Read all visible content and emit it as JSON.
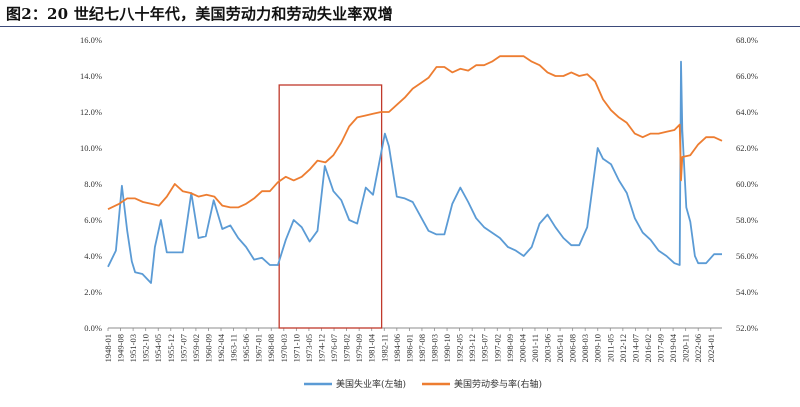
{
  "title": "图2：20 世纪七八十年代，美国劳动力和劳动失业率双增",
  "chart_data": {
    "type": "line",
    "grid": false,
    "legend_position": "bottom",
    "y_left": {
      "lim": [
        0,
        16
      ],
      "ticks": [
        0,
        2,
        4,
        6,
        8,
        10,
        12,
        14,
        16
      ],
      "tick_labels": [
        "0.0%",
        "2.0%",
        "4.0%",
        "6.0%",
        "8.0%",
        "10.0%",
        "12.0%",
        "14.0%",
        "16.0%"
      ]
    },
    "y_right": {
      "lim": [
        52,
        68
      ],
      "ticks": [
        52,
        54,
        56,
        58,
        60,
        62,
        64,
        66,
        68
      ],
      "tick_labels": [
        "52.0%",
        "54.0%",
        "56.0%",
        "58.0%",
        "60.0%",
        "62.0%",
        "64.0%",
        "66.0%",
        "68.0%"
      ]
    },
    "x_lim": [
      "1948-01",
      "2025-06"
    ],
    "x_tick_labels": [
      "1948-01",
      "1949-08",
      "1951-03",
      "1952-10",
      "1954-05",
      "1955-12",
      "1957-07",
      "1959-02",
      "1960-09",
      "1962-04",
      "1963-11",
      "1965-06",
      "1967-01",
      "1968-08",
      "1970-03",
      "1971-10",
      "1973-05",
      "1974-12",
      "1976-07",
      "1978-02",
      "1979-09",
      "1981-04",
      "1982-11",
      "1984-06",
      "1986-01",
      "1987-08",
      "1989-03",
      "1990-10",
      "1992-05",
      "1993-12",
      "1995-07",
      "1997-02",
      "1998-09",
      "2000-04",
      "2001-11",
      "2003-06",
      "2005-01",
      "2006-08",
      "2008-03",
      "2009-10",
      "2011-05",
      "2012-12",
      "2014-07",
      "2016-02",
      "2017-09",
      "2019-04",
      "2020-11",
      "2022-06",
      "2024-01"
    ],
    "highlight": {
      "x_start": "1969-08",
      "x_end": "1982-07",
      "y_left_range": [
        0,
        13.5
      ],
      "color": "#c0392b"
    },
    "series": [
      {
        "name": "美国失业率(左轴)",
        "axis": "left",
        "color": "#5b9bd5",
        "points": [
          [
            "1948-01",
            3.4
          ],
          [
            "1949-01",
            4.3
          ],
          [
            "1949-10",
            7.9
          ],
          [
            "1950-06",
            5.4
          ],
          [
            "1951-01",
            3.7
          ],
          [
            "1951-06",
            3.1
          ],
          [
            "1952-05",
            3.0
          ],
          [
            "1953-06",
            2.5
          ],
          [
            "1953-12",
            4.5
          ],
          [
            "1954-09",
            6.0
          ],
          [
            "1955-06",
            4.2
          ],
          [
            "1956-06",
            4.2
          ],
          [
            "1957-06",
            4.2
          ],
          [
            "1958-07",
            7.5
          ],
          [
            "1959-06",
            5.0
          ],
          [
            "1960-05",
            5.1
          ],
          [
            "1961-05",
            7.1
          ],
          [
            "1962-06",
            5.5
          ],
          [
            "1963-06",
            5.7
          ],
          [
            "1964-06",
            5.0
          ],
          [
            "1965-06",
            4.5
          ],
          [
            "1966-06",
            3.8
          ],
          [
            "1967-06",
            3.9
          ],
          [
            "1968-06",
            3.5
          ],
          [
            "1969-06",
            3.5
          ],
          [
            "1970-06",
            4.9
          ],
          [
            "1971-06",
            6.0
          ],
          [
            "1972-06",
            5.6
          ],
          [
            "1973-06",
            4.8
          ],
          [
            "1974-06",
            5.4
          ],
          [
            "1975-05",
            9.0
          ],
          [
            "1976-06",
            7.6
          ],
          [
            "1977-06",
            7.1
          ],
          [
            "1978-06",
            6.0
          ],
          [
            "1979-06",
            5.8
          ],
          [
            "1980-07",
            7.8
          ],
          [
            "1981-06",
            7.4
          ],
          [
            "1982-12",
            10.8
          ],
          [
            "1983-06",
            10.1
          ],
          [
            "1984-06",
            7.3
          ],
          [
            "1985-06",
            7.2
          ],
          [
            "1986-06",
            7.0
          ],
          [
            "1987-06",
            6.2
          ],
          [
            "1988-06",
            5.4
          ],
          [
            "1989-06",
            5.2
          ],
          [
            "1990-06",
            5.2
          ],
          [
            "1991-06",
            6.9
          ],
          [
            "1992-06",
            7.8
          ],
          [
            "1993-06",
            7.0
          ],
          [
            "1994-06",
            6.1
          ],
          [
            "1995-06",
            5.6
          ],
          [
            "1996-06",
            5.3
          ],
          [
            "1997-06",
            5.0
          ],
          [
            "1998-06",
            4.5
          ],
          [
            "1999-06",
            4.3
          ],
          [
            "2000-06",
            4.0
          ],
          [
            "2001-06",
            4.5
          ],
          [
            "2002-06",
            5.8
          ],
          [
            "2003-06",
            6.3
          ],
          [
            "2004-06",
            5.6
          ],
          [
            "2005-06",
            5.0
          ],
          [
            "2006-06",
            4.6
          ],
          [
            "2007-06",
            4.6
          ],
          [
            "2008-06",
            5.6
          ],
          [
            "2009-10",
            10.0
          ],
          [
            "2010-06",
            9.4
          ],
          [
            "2011-06",
            9.1
          ],
          [
            "2012-06",
            8.2
          ],
          [
            "2013-06",
            7.5
          ],
          [
            "2014-06",
            6.1
          ],
          [
            "2015-06",
            5.3
          ],
          [
            "2016-06",
            4.9
          ],
          [
            "2017-06",
            4.3
          ],
          [
            "2018-06",
            4.0
          ],
          [
            "2019-06",
            3.6
          ],
          [
            "2020-02",
            3.5
          ],
          [
            "2020-04",
            14.8
          ],
          [
            "2020-06",
            11.0
          ],
          [
            "2020-12",
            6.7
          ],
          [
            "2021-06",
            5.9
          ],
          [
            "2022-01",
            4.0
          ],
          [
            "2022-06",
            3.6
          ],
          [
            "2023-06",
            3.6
          ],
          [
            "2024-06",
            4.1
          ],
          [
            "2025-06",
            4.1
          ]
        ]
      },
      {
        "name": "美国劳动参与率(右轴)",
        "axis": "right",
        "color": "#ed7d31",
        "points": [
          [
            "1948-01",
            58.6
          ],
          [
            "1949-06",
            58.9
          ],
          [
            "1950-06",
            59.2
          ],
          [
            "1951-06",
            59.2
          ],
          [
            "1952-06",
            59.0
          ],
          [
            "1953-06",
            58.9
          ],
          [
            "1954-06",
            58.8
          ],
          [
            "1955-06",
            59.3
          ],
          [
            "1956-06",
            60.0
          ],
          [
            "1957-06",
            59.6
          ],
          [
            "1958-06",
            59.5
          ],
          [
            "1959-06",
            59.3
          ],
          [
            "1960-06",
            59.4
          ],
          [
            "1961-06",
            59.3
          ],
          [
            "1962-06",
            58.8
          ],
          [
            "1963-06",
            58.7
          ],
          [
            "1964-06",
            58.7
          ],
          [
            "1965-06",
            58.9
          ],
          [
            "1966-06",
            59.2
          ],
          [
            "1967-06",
            59.6
          ],
          [
            "1968-06",
            59.6
          ],
          [
            "1969-06",
            60.1
          ],
          [
            "1970-06",
            60.4
          ],
          [
            "1971-06",
            60.2
          ],
          [
            "1972-06",
            60.4
          ],
          [
            "1973-06",
            60.8
          ],
          [
            "1974-06",
            61.3
          ],
          [
            "1975-06",
            61.2
          ],
          [
            "1976-06",
            61.6
          ],
          [
            "1977-06",
            62.3
          ],
          [
            "1978-06",
            63.2
          ],
          [
            "1979-06",
            63.7
          ],
          [
            "1980-06",
            63.8
          ],
          [
            "1981-06",
            63.9
          ],
          [
            "1982-06",
            64.0
          ],
          [
            "1983-06",
            64.0
          ],
          [
            "1984-06",
            64.4
          ],
          [
            "1985-06",
            64.8
          ],
          [
            "1986-06",
            65.3
          ],
          [
            "1987-06",
            65.6
          ],
          [
            "1988-06",
            65.9
          ],
          [
            "1989-06",
            66.5
          ],
          [
            "1990-06",
            66.5
          ],
          [
            "1991-06",
            66.2
          ],
          [
            "1992-06",
            66.4
          ],
          [
            "1993-06",
            66.3
          ],
          [
            "1994-06",
            66.6
          ],
          [
            "1995-06",
            66.6
          ],
          [
            "1996-06",
            66.8
          ],
          [
            "1997-06",
            67.1
          ],
          [
            "1998-06",
            67.1
          ],
          [
            "1999-06",
            67.1
          ],
          [
            "2000-06",
            67.1
          ],
          [
            "2001-06",
            66.8
          ],
          [
            "2002-06",
            66.6
          ],
          [
            "2003-06",
            66.2
          ],
          [
            "2004-06",
            66.0
          ],
          [
            "2005-06",
            66.0
          ],
          [
            "2006-06",
            66.2
          ],
          [
            "2007-06",
            66.0
          ],
          [
            "2008-06",
            66.1
          ],
          [
            "2009-06",
            65.7
          ],
          [
            "2010-06",
            64.7
          ],
          [
            "2011-06",
            64.1
          ],
          [
            "2012-06",
            63.7
          ],
          [
            "2013-06",
            63.4
          ],
          [
            "2014-06",
            62.8
          ],
          [
            "2015-06",
            62.6
          ],
          [
            "2016-06",
            62.8
          ],
          [
            "2017-06",
            62.8
          ],
          [
            "2018-06",
            62.9
          ],
          [
            "2019-06",
            63.0
          ],
          [
            "2020-02",
            63.3
          ],
          [
            "2020-04",
            60.2
          ],
          [
            "2020-06",
            61.5
          ],
          [
            "2021-06",
            61.6
          ],
          [
            "2022-06",
            62.2
          ],
          [
            "2023-06",
            62.6
          ],
          [
            "2024-06",
            62.6
          ],
          [
            "2025-06",
            62.4
          ]
        ]
      }
    ]
  }
}
